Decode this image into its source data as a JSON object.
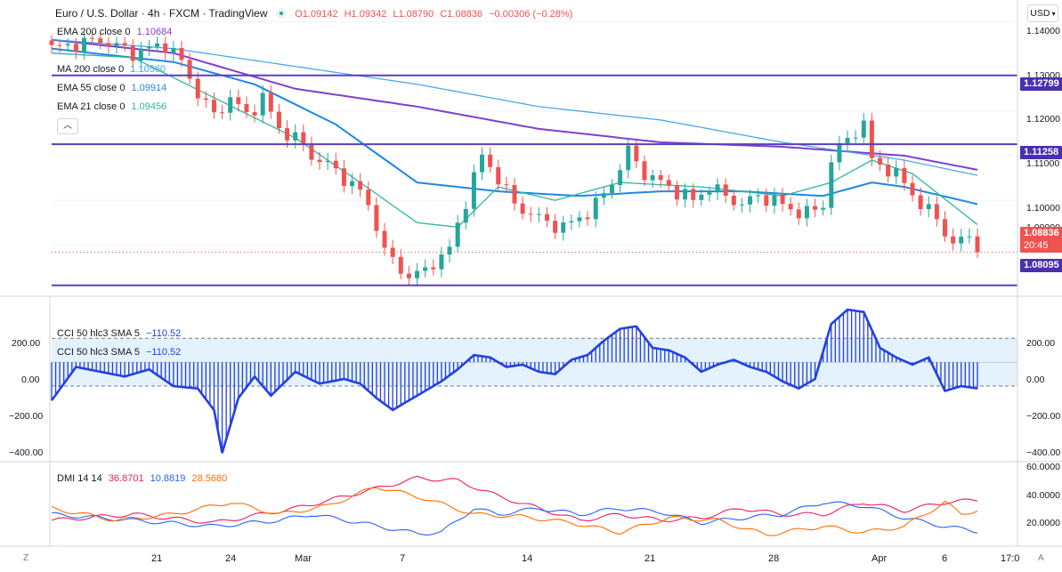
{
  "header": {
    "symbol": "Euro / U.S. Dollar · 4h · FXCM · TradingView",
    "open": "O1.09142",
    "high": "H1.09342",
    "low": "L1.08790",
    "close": "C1.08836",
    "change": "−0.00306 (−0.28%)",
    "currency": "USD",
    "collapse_icon": "chevron-up-icon"
  },
  "legend": {
    "ema200": {
      "label": "EMA 200 close 0",
      "value": "1.10684"
    },
    "ma200": {
      "label": "MA 200 close 0",
      "value": "1.10560"
    },
    "ema55": {
      "label": "EMA 55 close 0",
      "value": "1.09914"
    },
    "ema21": {
      "label": "EMA 21 close 0",
      "value": "1.09456"
    },
    "cci1": {
      "label": "CCI 50 hlc3 SMA 5",
      "value": "−110.52"
    },
    "cci2": {
      "label": "CCI 50 hlc3 SMA 5",
      "value": "−110.52"
    },
    "dmi": {
      "label": "DMI 14 14",
      "v1": "36.8701",
      "v2": "10.8819",
      "v3": "28.5680"
    }
  },
  "colors": {
    "up": "#26a69a",
    "down": "#ef5350",
    "ema200": "#7e3fd0",
    "ma200": "#3fa3e8",
    "ema55": "#1e88e5",
    "ema21": "#2fb5a0",
    "hline": "#5b3fc0",
    "cci": "#2340e0",
    "dmi_plus": "#e91e63",
    "dmi_minus": "#2962ff",
    "adx": "#ff6d00"
  },
  "price_axis": [
    "1.14000",
    "1.13000",
    "1.12000",
    "1.11000",
    "1.10000",
    "1.09000"
  ],
  "price_tags": {
    "level1": "1.12799",
    "level2": "1.11258",
    "level3": "1.08095",
    "last": "1.08836",
    "countdown": "20:45"
  },
  "cci_axis": [
    "200.00",
    "0.00",
    "−200.00",
    "−400.00"
  ],
  "cci_axis_right": [
    "200.00",
    "0.00",
    "−200.00",
    "−400.00"
  ],
  "dmi_axis": [
    "60.0000",
    "40.0000",
    "20.0000"
  ],
  "time_axis": [
    "21",
    "24",
    "Mar",
    "7",
    "14",
    "21",
    "28",
    "Apr",
    "6",
    "17:0"
  ],
  "corners": {
    "left": "Z",
    "right": "A"
  },
  "chart_data": [
    {
      "type": "candlestick",
      "title": "Euro / U.S. Dollar · 4h · FXCM",
      "ylim": [
        1.0795,
        1.1425
      ],
      "horizontal_levels": [
        1.12799,
        1.11258,
        1.08095
      ],
      "last_price": 1.08836,
      "anchors": [
        [
          0,
          1.134
        ],
        [
          6,
          1.136
        ],
        [
          10,
          1.133
        ],
        [
          14,
          1.135
        ],
        [
          16,
          1.131
        ],
        [
          18,
          1.124
        ],
        [
          20,
          1.119
        ],
        [
          22,
          1.123
        ],
        [
          24,
          1.119
        ],
        [
          26,
          1.123
        ],
        [
          28,
          1.116
        ],
        [
          30,
          1.114
        ],
        [
          32,
          1.11
        ],
        [
          34,
          1.108
        ],
        [
          36,
          1.105
        ],
        [
          38,
          1.102
        ],
        [
          40,
          1.095
        ],
        [
          41,
          1.088
        ],
        [
          42,
          1.087
        ],
        [
          43,
          1.084
        ],
        [
          45,
          1.083
        ],
        [
          47,
          1.086
        ],
        [
          49,
          1.089
        ],
        [
          51,
          1.1
        ],
        [
          53,
          1.11
        ],
        [
          55,
          1.105
        ],
        [
          57,
          1.099
        ],
        [
          59,
          1.097
        ],
        [
          61,
          1.095
        ],
        [
          63,
          1.094
        ],
        [
          65,
          1.096
        ],
        [
          67,
          1.099
        ],
        [
          69,
          1.104
        ],
        [
          71,
          1.111
        ],
        [
          73,
          1.106
        ],
        [
          75,
          1.104
        ],
        [
          77,
          1.102
        ],
        [
          79,
          1.1
        ],
        [
          81,
          1.103
        ],
        [
          83,
          1.101
        ],
        [
          85,
          1.099
        ],
        [
          87,
          1.101
        ],
        [
          89,
          1.1
        ],
        [
          91,
          1.098
        ],
        [
          93,
          1.097
        ],
        [
          95,
          1.099
        ],
        [
          96,
          1.109
        ],
        [
          98,
          1.114
        ],
        [
          100,
          1.117
        ],
        [
          101,
          1.109
        ],
        [
          103,
          1.107
        ],
        [
          105,
          1.104
        ],
        [
          107,
          1.099
        ],
        [
          109,
          1.096
        ],
        [
          111,
          1.09
        ],
        [
          113,
          1.092
        ],
        [
          114,
          1.088
        ]
      ],
      "series": [
        {
          "name": "EMA 200 close 0",
          "value": 1.10684,
          "points": [
            [
              0,
              1.136
            ],
            [
              15,
              1.133
            ],
            [
              30,
              1.125
            ],
            [
              45,
              1.121
            ],
            [
              60,
              1.116
            ],
            [
              75,
              1.113
            ],
            [
              90,
              1.112
            ],
            [
              105,
              1.11
            ],
            [
              114,
              1.10684
            ]
          ]
        },
        {
          "name": "MA 200 close 0",
          "value": 1.1056,
          "points": [
            [
              0,
              1.136
            ],
            [
              15,
              1.134
            ],
            [
              30,
              1.13
            ],
            [
              45,
              1.126
            ],
            [
              60,
              1.121
            ],
            [
              75,
              1.118
            ],
            [
              90,
              1.113
            ],
            [
              105,
              1.109
            ],
            [
              114,
              1.1056
            ]
          ]
        },
        {
          "name": "EMA 55 close 0",
          "value": 1.09914,
          "points": [
            [
              0,
              1.134
            ],
            [
              15,
              1.131
            ],
            [
              25,
              1.126
            ],
            [
              35,
              1.117
            ],
            [
              45,
              1.104
            ],
            [
              55,
              1.102
            ],
            [
              65,
              1.101
            ],
            [
              75,
              1.102
            ],
            [
              85,
              1.102
            ],
            [
              95,
              1.101
            ],
            [
              101,
              1.104
            ],
            [
              105,
              1.103
            ],
            [
              114,
              1.09914
            ]
          ]
        },
        {
          "name": "EMA 21 close 0",
          "value": 1.09456,
          "points": [
            [
              0,
              1.133
            ],
            [
              10,
              1.132
            ],
            [
              20,
              1.123
            ],
            [
              30,
              1.114
            ],
            [
              38,
              1.104
            ],
            [
              45,
              1.095
            ],
            [
              50,
              1.094
            ],
            [
              55,
              1.103
            ],
            [
              62,
              1.1
            ],
            [
              70,
              1.104
            ],
            [
              80,
              1.103
            ],
            [
              90,
              1.101
            ],
            [
              96,
              1.104
            ],
            [
              101,
              1.109
            ],
            [
              106,
              1.106
            ],
            [
              114,
              1.09456
            ]
          ]
        }
      ]
    },
    {
      "type": "bar",
      "title": "CCI 50 hlc3 SMA 5",
      "last_value": -110.52,
      "ylim": [
        -420,
        250
      ],
      "band": [
        100,
        -100
      ],
      "anchors": [
        [
          0,
          -160
        ],
        [
          3,
          -20
        ],
        [
          6,
          -40
        ],
        [
          9,
          -60
        ],
        [
          12,
          -30
        ],
        [
          15,
          -100
        ],
        [
          18,
          -110
        ],
        [
          20,
          -200
        ],
        [
          21,
          -380
        ],
        [
          23,
          -150
        ],
        [
          25,
          -60
        ],
        [
          27,
          -140
        ],
        [
          30,
          -40
        ],
        [
          33,
          -90
        ],
        [
          36,
          -70
        ],
        [
          38,
          -90
        ],
        [
          40,
          -150
        ],
        [
          42,
          -200
        ],
        [
          44,
          -160
        ],
        [
          46,
          -120
        ],
        [
          48,
          -80
        ],
        [
          50,
          -30
        ],
        [
          52,
          30
        ],
        [
          54,
          20
        ],
        [
          56,
          -20
        ],
        [
          58,
          -10
        ],
        [
          60,
          -40
        ],
        [
          62,
          -50
        ],
        [
          64,
          10
        ],
        [
          66,
          30
        ],
        [
          68,
          90
        ],
        [
          70,
          140
        ],
        [
          72,
          150
        ],
        [
          74,
          60
        ],
        [
          76,
          50
        ],
        [
          78,
          20
        ],
        [
          80,
          -40
        ],
        [
          82,
          -10
        ],
        [
          84,
          10
        ],
        [
          86,
          -20
        ],
        [
          88,
          -40
        ],
        [
          90,
          -80
        ],
        [
          92,
          -110
        ],
        [
          94,
          -70
        ],
        [
          96,
          160
        ],
        [
          98,
          220
        ],
        [
          100,
          210
        ],
        [
          102,
          60
        ],
        [
          104,
          20
        ],
        [
          106,
          -10
        ],
        [
          108,
          20
        ],
        [
          110,
          -120
        ],
        [
          112,
          -100
        ],
        [
          114,
          -110
        ]
      ]
    },
    {
      "type": "line",
      "title": "DMI 14 14",
      "ylim": [
        0,
        65
      ],
      "series": [
        {
          "name": "36.8701",
          "points": [
            [
              0,
              20
            ],
            [
              10,
              25
            ],
            [
              20,
              18
            ],
            [
              30,
              30
            ],
            [
              35,
              38
            ],
            [
              45,
              55
            ],
            [
              50,
              53
            ],
            [
              55,
              40
            ],
            [
              60,
              30
            ],
            [
              65,
              20
            ],
            [
              70,
              25
            ],
            [
              75,
              20
            ],
            [
              80,
              22
            ],
            [
              85,
              30
            ],
            [
              90,
              25
            ],
            [
              95,
              25
            ],
            [
              100,
              35
            ],
            [
              105,
              28
            ],
            [
              110,
              35
            ],
            [
              114,
              36.8701
            ]
          ]
        },
        {
          "name": "10.8819",
          "points": [
            [
              0,
              25
            ],
            [
              10,
              20
            ],
            [
              20,
              15
            ],
            [
              28,
              20
            ],
            [
              32,
              25
            ],
            [
              38,
              18
            ],
            [
              45,
              9
            ],
            [
              48,
              10
            ],
            [
              52,
              30
            ],
            [
              55,
              25
            ],
            [
              60,
              30
            ],
            [
              65,
              25
            ],
            [
              70,
              30
            ],
            [
              75,
              27
            ],
            [
              80,
              18
            ],
            [
              85,
              22
            ],
            [
              90,
              25
            ],
            [
              95,
              35
            ],
            [
              100,
              32
            ],
            [
              105,
              22
            ],
            [
              110,
              15
            ],
            [
              114,
              10.8819
            ]
          ]
        },
        {
          "name": "28.5680",
          "points": [
            [
              0,
              30
            ],
            [
              8,
              20
            ],
            [
              15,
              25
            ],
            [
              22,
              35
            ],
            [
              28,
              25
            ],
            [
              34,
              32
            ],
            [
              40,
              48
            ],
            [
              46,
              38
            ],
            [
              52,
              25
            ],
            [
              58,
              23
            ],
            [
              64,
              18
            ],
            [
              70,
              10
            ],
            [
              76,
              22
            ],
            [
              82,
              20
            ],
            [
              88,
              8
            ],
            [
              95,
              15
            ],
            [
              100,
              10
            ],
            [
              105,
              15
            ],
            [
              110,
              35
            ],
            [
              112,
              25
            ],
            [
              114,
              28.568
            ]
          ]
        }
      ]
    }
  ]
}
